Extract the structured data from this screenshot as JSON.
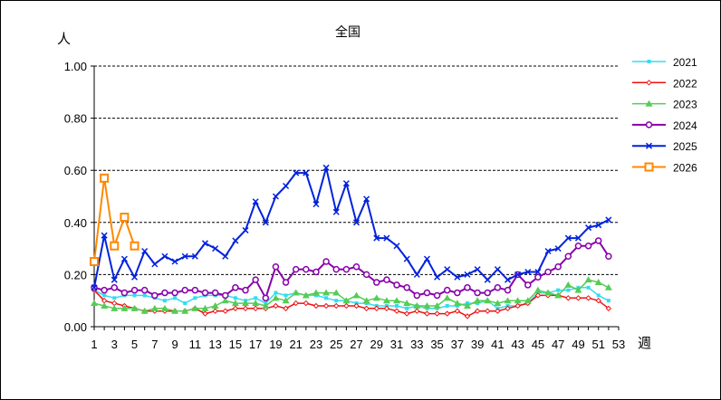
{
  "chart_data": {
    "type": "line",
    "title": "全国",
    "ylabel": "人",
    "xlabel": "週",
    "ylim": [
      0,
      1.0
    ],
    "xlim": [
      1,
      53
    ],
    "yticks": [
      "0.00",
      "0.20",
      "0.40",
      "0.60",
      "0.80",
      "1.00"
    ],
    "xticks": [
      "1",
      "3",
      "5",
      "7",
      "9",
      "11",
      "13",
      "15",
      "17",
      "19",
      "21",
      "23",
      "25",
      "27",
      "29",
      "31",
      "33",
      "35",
      "37",
      "39",
      "41",
      "43",
      "45",
      "47",
      "49",
      "51",
      "53"
    ],
    "grid": "horizontal dashed",
    "legend_position": "right",
    "series": [
      {
        "name": "2021",
        "color": "#33DDEE",
        "marker": "square-small",
        "values": [
          0.14,
          0.12,
          0.11,
          0.12,
          0.12,
          0.12,
          0.11,
          0.1,
          0.11,
          0.09,
          0.11,
          0.12,
          0.12,
          0.12,
          0.11,
          0.1,
          0.11,
          0.09,
          0.13,
          0.12,
          0.13,
          0.12,
          0.12,
          0.11,
          0.1,
          0.1,
          0.09,
          0.09,
          0.08,
          0.08,
          0.08,
          0.07,
          0.08,
          0.07,
          0.07,
          0.08,
          0.08,
          0.09,
          0.09,
          0.1,
          0.07,
          0.08,
          0.08,
          0.09,
          0.13,
          0.13,
          0.14,
          0.14,
          0.15,
          0.15,
          0.12,
          0.1
        ]
      },
      {
        "name": "2022",
        "color": "#EE1111",
        "marker": "diamond-small",
        "values": [
          0.14,
          0.1,
          0.09,
          0.08,
          0.07,
          0.06,
          0.06,
          0.06,
          0.06,
          0.06,
          0.07,
          0.05,
          0.06,
          0.06,
          0.07,
          0.07,
          0.07,
          0.07,
          0.08,
          0.07,
          0.09,
          0.09,
          0.08,
          0.08,
          0.08,
          0.08,
          0.08,
          0.07,
          0.07,
          0.07,
          0.06,
          0.05,
          0.06,
          0.05,
          0.05,
          0.05,
          0.06,
          0.04,
          0.06,
          0.06,
          0.06,
          0.07,
          0.08,
          0.09,
          0.12,
          0.12,
          0.12,
          0.11,
          0.11,
          0.11,
          0.1,
          0.07
        ]
      },
      {
        "name": "2023",
        "color": "#55CC55",
        "marker": "triangle",
        "values": [
          0.09,
          0.08,
          0.07,
          0.07,
          0.07,
          0.06,
          0.07,
          0.07,
          0.06,
          0.06,
          0.07,
          0.07,
          0.08,
          0.1,
          0.09,
          0.09,
          0.09,
          0.08,
          0.11,
          0.1,
          0.13,
          0.12,
          0.13,
          0.13,
          0.13,
          0.1,
          0.12,
          0.1,
          0.11,
          0.1,
          0.1,
          0.09,
          0.08,
          0.08,
          0.08,
          0.11,
          0.09,
          0.08,
          0.1,
          0.1,
          0.09,
          0.1,
          0.1,
          0.1,
          0.14,
          0.13,
          0.12,
          0.16,
          0.14,
          0.18,
          0.17,
          0.15
        ]
      },
      {
        "name": "2024",
        "color": "#8800AA",
        "marker": "circle-open",
        "values": [
          0.15,
          0.14,
          0.15,
          0.13,
          0.14,
          0.14,
          0.12,
          0.13,
          0.13,
          0.14,
          0.14,
          0.13,
          0.13,
          0.12,
          0.15,
          0.14,
          0.18,
          0.11,
          0.23,
          0.17,
          0.22,
          0.22,
          0.21,
          0.25,
          0.22,
          0.22,
          0.23,
          0.2,
          0.17,
          0.18,
          0.16,
          0.15,
          0.12,
          0.13,
          0.12,
          0.14,
          0.13,
          0.15,
          0.13,
          0.13,
          0.15,
          0.14,
          0.2,
          0.16,
          0.19,
          0.21,
          0.23,
          0.27,
          0.31,
          0.31,
          0.33,
          0.27
        ]
      },
      {
        "name": "2025",
        "color": "#0022DD",
        "marker": "x",
        "values": [
          0.15,
          0.35,
          0.18,
          0.26,
          0.19,
          0.29,
          0.24,
          0.27,
          0.25,
          0.27,
          0.27,
          0.32,
          0.3,
          0.27,
          0.33,
          0.37,
          0.48,
          0.4,
          0.5,
          0.54,
          0.59,
          0.59,
          0.47,
          0.61,
          0.44,
          0.55,
          0.4,
          0.49,
          0.34,
          0.34,
          0.31,
          0.26,
          0.2,
          0.26,
          0.19,
          0.22,
          0.19,
          0.2,
          0.22,
          0.18,
          0.22,
          0.18,
          0.2,
          0.21,
          0.21,
          0.29,
          0.3,
          0.34,
          0.34,
          0.38,
          0.39,
          0.41
        ]
      },
      {
        "name": "2026",
        "color": "#FF8800",
        "marker": "square-open",
        "values": [
          0.25,
          0.57,
          0.31,
          0.42,
          0.31
        ]
      }
    ]
  }
}
